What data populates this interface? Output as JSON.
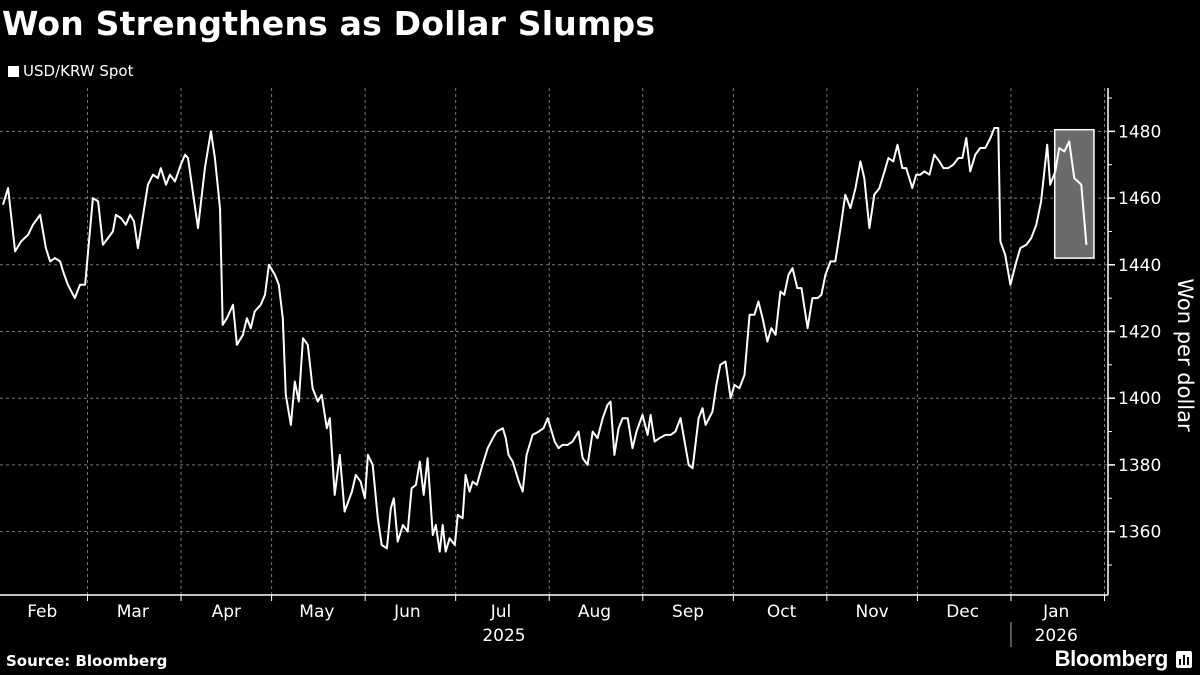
{
  "header": {
    "title": "Won Strengthens as Dollar Slumps"
  },
  "legend": {
    "series_label": "USD/KRW Spot"
  },
  "footer": {
    "source": "Source: Bloomberg",
    "brand": "Bloomberg"
  },
  "colors": {
    "background": "#000000",
    "line": "#ffffff",
    "grid": "#7a7a7a",
    "highlight": "#6b6b6b"
  },
  "chart_data": {
    "type": "line",
    "title": "Won Strengthens as Dollar Slumps",
    "ylabel": "Won per dollar",
    "xlabel": "",
    "x_unit": "days since 2025-02-01",
    "xlim": [
      -1,
      364.5
    ],
    "ylim": [
      1341,
      1493
    ],
    "yticks": [
      1360,
      1380,
      1400,
      1420,
      1440,
      1460,
      1480
    ],
    "y_minor_step": 10,
    "grid": true,
    "legend_position": "top-left",
    "month_boundaries": [
      28,
      59,
      89,
      120,
      150,
      181,
      212,
      242,
      273,
      303,
      334,
      365
    ],
    "month_labels": [
      {
        "label": "Feb",
        "day": 13
      },
      {
        "label": "Mar",
        "day": 43
      },
      {
        "label": "Apr",
        "day": 74
      },
      {
        "label": "May",
        "day": 104
      },
      {
        "label": "Jun",
        "day": 134
      },
      {
        "label": "Jul",
        "day": 165
      },
      {
        "label": "Aug",
        "day": 196
      },
      {
        "label": "Sep",
        "day": 227
      },
      {
        "label": "Oct",
        "day": 258
      },
      {
        "label": "Nov",
        "day": 288
      },
      {
        "label": "Dec",
        "day": 318
      },
      {
        "label": "Jan",
        "day": 349
      }
    ],
    "year_labels": [
      {
        "label": "2025",
        "day": 166
      },
      {
        "label": "2026",
        "day": 349
      }
    ],
    "year_separator_day": 334,
    "highlight": {
      "x_start": 348.5,
      "x_end": 361.5,
      "y_low": 1442,
      "y_high": 1480.5
    },
    "series": [
      {
        "name": "USD/KRW Spot",
        "points": [
          [
            0.0,
            1458
          ],
          [
            1.7,
            1463
          ],
          [
            4.0,
            1444
          ],
          [
            6.0,
            1447
          ],
          [
            8.3,
            1449
          ],
          [
            9.9,
            1452
          ],
          [
            12.3,
            1455
          ],
          [
            14.2,
            1445
          ],
          [
            15.6,
            1441
          ],
          [
            17.2,
            1442
          ],
          [
            18.9,
            1441
          ],
          [
            19.9,
            1438
          ],
          [
            21.5,
            1434
          ],
          [
            23.8,
            1430
          ],
          [
            25.5,
            1434
          ],
          [
            27.2,
            1434
          ],
          [
            29.8,
            1460
          ],
          [
            31.5,
            1459
          ],
          [
            33.1,
            1446
          ],
          [
            34.8,
            1448
          ],
          [
            36.4,
            1450
          ],
          [
            37.4,
            1455
          ],
          [
            39.1,
            1454
          ],
          [
            40.7,
            1452
          ],
          [
            42.1,
            1455
          ],
          [
            43.4,
            1453
          ],
          [
            44.7,
            1445
          ],
          [
            48.0,
            1464
          ],
          [
            49.7,
            1467
          ],
          [
            51.3,
            1466
          ],
          [
            52.3,
            1469
          ],
          [
            54.0,
            1464
          ],
          [
            55.3,
            1467
          ],
          [
            57.0,
            1465
          ],
          [
            58.9,
            1470
          ],
          [
            60.3,
            1473
          ],
          [
            61.3,
            1472
          ],
          [
            64.6,
            1451
          ],
          [
            66.9,
            1469
          ],
          [
            68.9,
            1480
          ],
          [
            70.2,
            1472
          ],
          [
            71.9,
            1457
          ],
          [
            72.8,
            1422
          ],
          [
            74.2,
            1424
          ],
          [
            76.2,
            1428
          ],
          [
            77.5,
            1416
          ],
          [
            79.5,
            1419
          ],
          [
            80.8,
            1424
          ],
          [
            82.1,
            1421
          ],
          [
            83.4,
            1426
          ],
          [
            85.4,
            1428
          ],
          [
            86.8,
            1431
          ],
          [
            88.1,
            1440
          ],
          [
            90.1,
            1437
          ],
          [
            91.4,
            1434
          ],
          [
            92.7,
            1424
          ],
          [
            93.7,
            1401
          ],
          [
            95.4,
            1392
          ],
          [
            96.7,
            1405
          ],
          [
            98.0,
            1399
          ],
          [
            99.4,
            1418
          ],
          [
            101.0,
            1416
          ],
          [
            102.6,
            1403
          ],
          [
            104.3,
            1399
          ],
          [
            105.6,
            1401
          ],
          [
            107.3,
            1391
          ],
          [
            108.3,
            1394
          ],
          [
            109.9,
            1371
          ],
          [
            111.6,
            1383
          ],
          [
            113.2,
            1366
          ],
          [
            115.6,
            1372
          ],
          [
            116.9,
            1377
          ],
          [
            118.5,
            1375
          ],
          [
            119.9,
            1370
          ],
          [
            120.9,
            1383
          ],
          [
            122.5,
            1380
          ],
          [
            124.2,
            1364
          ],
          [
            125.5,
            1356
          ],
          [
            127.2,
            1355
          ],
          [
            128.5,
            1367
          ],
          [
            129.5,
            1370
          ],
          [
            130.8,
            1357
          ],
          [
            132.5,
            1362
          ],
          [
            134.1,
            1360
          ],
          [
            135.4,
            1373
          ],
          [
            136.8,
            1374
          ],
          [
            138.1,
            1381
          ],
          [
            139.4,
            1371
          ],
          [
            140.7,
            1382
          ],
          [
            142.4,
            1359
          ],
          [
            143.4,
            1362
          ],
          [
            144.7,
            1354
          ],
          [
            145.7,
            1362
          ],
          [
            146.7,
            1354
          ],
          [
            148.0,
            1358
          ],
          [
            149.7,
            1356
          ],
          [
            150.7,
            1365
          ],
          [
            152.3,
            1364
          ],
          [
            153.3,
            1377
          ],
          [
            154.6,
            1372
          ],
          [
            155.6,
            1375
          ],
          [
            157.0,
            1374
          ],
          [
            158.9,
            1380
          ],
          [
            160.6,
            1385
          ],
          [
            162.3,
            1388
          ],
          [
            163.6,
            1390
          ],
          [
            165.6,
            1391
          ],
          [
            166.6,
            1388
          ],
          [
            167.5,
            1383
          ],
          [
            168.9,
            1381
          ],
          [
            170.9,
            1375
          ],
          [
            172.2,
            1372
          ],
          [
            173.5,
            1383
          ],
          [
            175.5,
            1389
          ],
          [
            177.5,
            1390
          ],
          [
            179.1,
            1391
          ],
          [
            180.5,
            1394
          ],
          [
            182.8,
            1387
          ],
          [
            184.1,
            1385
          ],
          [
            185.4,
            1386
          ],
          [
            187.1,
            1386
          ],
          [
            188.7,
            1387
          ],
          [
            190.7,
            1390
          ],
          [
            192.1,
            1382
          ],
          [
            193.7,
            1380
          ],
          [
            195.4,
            1390
          ],
          [
            197.0,
            1388
          ],
          [
            198.7,
            1394
          ],
          [
            200.3,
            1398
          ],
          [
            201.3,
            1399
          ],
          [
            202.6,
            1383
          ],
          [
            204.0,
            1391
          ],
          [
            205.3,
            1394
          ],
          [
            207.0,
            1394
          ],
          [
            208.6,
            1385
          ],
          [
            209.9,
            1390
          ],
          [
            211.9,
            1395
          ],
          [
            213.6,
            1389
          ],
          [
            214.6,
            1395
          ],
          [
            215.9,
            1387
          ],
          [
            217.5,
            1388
          ],
          [
            219.5,
            1389
          ],
          [
            221.2,
            1389
          ],
          [
            222.8,
            1390
          ],
          [
            224.5,
            1394
          ],
          [
            227.2,
            1380
          ],
          [
            228.5,
            1379
          ],
          [
            230.5,
            1394
          ],
          [
            231.8,
            1397
          ],
          [
            232.8,
            1392
          ],
          [
            235.1,
            1396
          ],
          [
            236.4,
            1404
          ],
          [
            237.7,
            1410
          ],
          [
            239.4,
            1411
          ],
          [
            241.1,
            1400
          ],
          [
            242.4,
            1404
          ],
          [
            244.0,
            1403
          ],
          [
            245.7,
            1407
          ],
          [
            247.4,
            1425
          ],
          [
            249.0,
            1425
          ],
          [
            250.3,
            1429
          ],
          [
            251.7,
            1424
          ],
          [
            253.3,
            1417
          ],
          [
            254.6,
            1421
          ],
          [
            256.0,
            1419
          ],
          [
            257.6,
            1432
          ],
          [
            258.9,
            1431
          ],
          [
            260.3,
            1437
          ],
          [
            261.6,
            1439
          ],
          [
            263.2,
            1433
          ],
          [
            264.6,
            1433
          ],
          [
            266.6,
            1421
          ],
          [
            268.2,
            1430
          ],
          [
            269.9,
            1430
          ],
          [
            271.2,
            1431
          ],
          [
            272.5,
            1437
          ],
          [
            274.2,
            1441
          ],
          [
            275.8,
            1441
          ],
          [
            277.5,
            1451
          ],
          [
            279.1,
            1461
          ],
          [
            280.8,
            1457
          ],
          [
            282.5,
            1463
          ],
          [
            284.1,
            1471
          ],
          [
            285.4,
            1466
          ],
          [
            287.1,
            1451
          ],
          [
            288.7,
            1461
          ],
          [
            290.4,
            1463
          ],
          [
            292.1,
            1468
          ],
          [
            293.4,
            1472
          ],
          [
            295.0,
            1471
          ],
          [
            296.4,
            1476
          ],
          [
            298.0,
            1469
          ],
          [
            299.3,
            1469
          ],
          [
            301.3,
            1463
          ],
          [
            302.6,
            1467
          ],
          [
            304.0,
            1467
          ],
          [
            305.3,
            1468
          ],
          [
            307.0,
            1467
          ],
          [
            308.6,
            1473
          ],
          [
            310.3,
            1471
          ],
          [
            311.6,
            1469
          ],
          [
            313.2,
            1469
          ],
          [
            314.9,
            1470
          ],
          [
            316.6,
            1472
          ],
          [
            317.9,
            1472
          ],
          [
            319.2,
            1478
          ],
          [
            320.5,
            1468
          ],
          [
            322.2,
            1473
          ],
          [
            323.8,
            1475
          ],
          [
            325.5,
            1475
          ],
          [
            327.2,
            1478
          ],
          [
            328.5,
            1481
          ],
          [
            329.8,
            1481
          ],
          [
            330.5,
            1447
          ],
          [
            332.1,
            1443
          ],
          [
            333.8,
            1434
          ],
          [
            335.8,
            1441
          ],
          [
            337.1,
            1445
          ],
          [
            339.1,
            1446
          ],
          [
            340.7,
            1448
          ],
          [
            342.4,
            1452
          ],
          [
            344.0,
            1459
          ],
          [
            346.0,
            1476
          ],
          [
            347.0,
            1464
          ],
          [
            348.7,
            1468
          ],
          [
            350.0,
            1475
          ],
          [
            351.7,
            1474
          ],
          [
            353.3,
            1477
          ],
          [
            355.0,
            1466
          ],
          [
            357.3,
            1464
          ],
          [
            359.0,
            1446
          ]
        ]
      }
    ]
  }
}
